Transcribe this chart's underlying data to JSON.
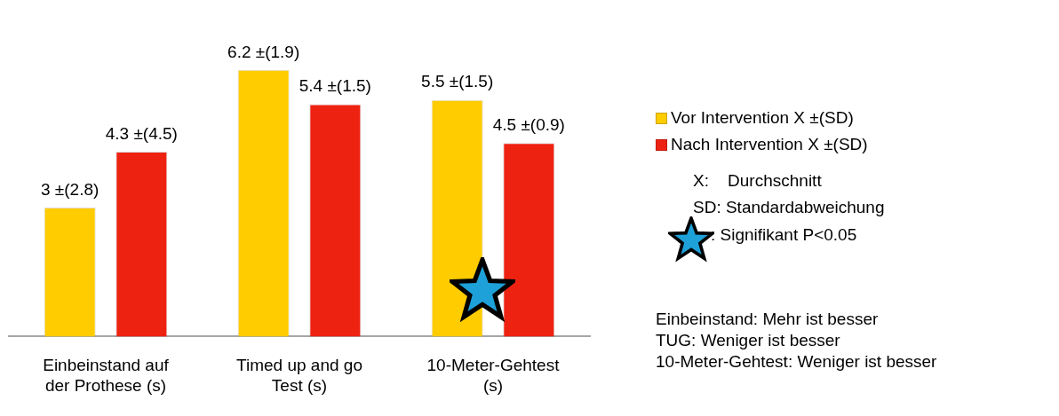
{
  "chart_data": {
    "type": "bar",
    "categories": [
      "Einbeinstand auf der Prothese (s)",
      "Timed up and go Test (s)",
      "10-Meter-Gehtest (s)"
    ],
    "series": [
      {
        "name": "Vor Intervention X ±(SD)",
        "color": "#ffcc00",
        "values": [
          3,
          6.2,
          5.5
        ],
        "value_labels": [
          "3 ±(2.8)",
          "6.2 ±(1.9)",
          "5.5 ±(1.5)"
        ]
      },
      {
        "name": "Nach Intervention X ±(SD)",
        "color": "#ee2211",
        "values": [
          4.3,
          5.4,
          4.5
        ],
        "value_labels": [
          "4.3 ±(4.5)",
          "5.4 ±(1.5)",
          "4.5 ±(0.9)"
        ]
      }
    ],
    "legend": "right",
    "grid": false,
    "tick_labels": "x",
    "annotations": [
      "X:    Durchschnitt",
      "SD: Standardabweichung",
      ": Signifikant P<0.05",
      "Einbeinstand: Mehr ist besser",
      "TUG: Weniger ist besser",
      "10-Meter-Gehtest: Weniger ist besser"
    ]
  }
}
